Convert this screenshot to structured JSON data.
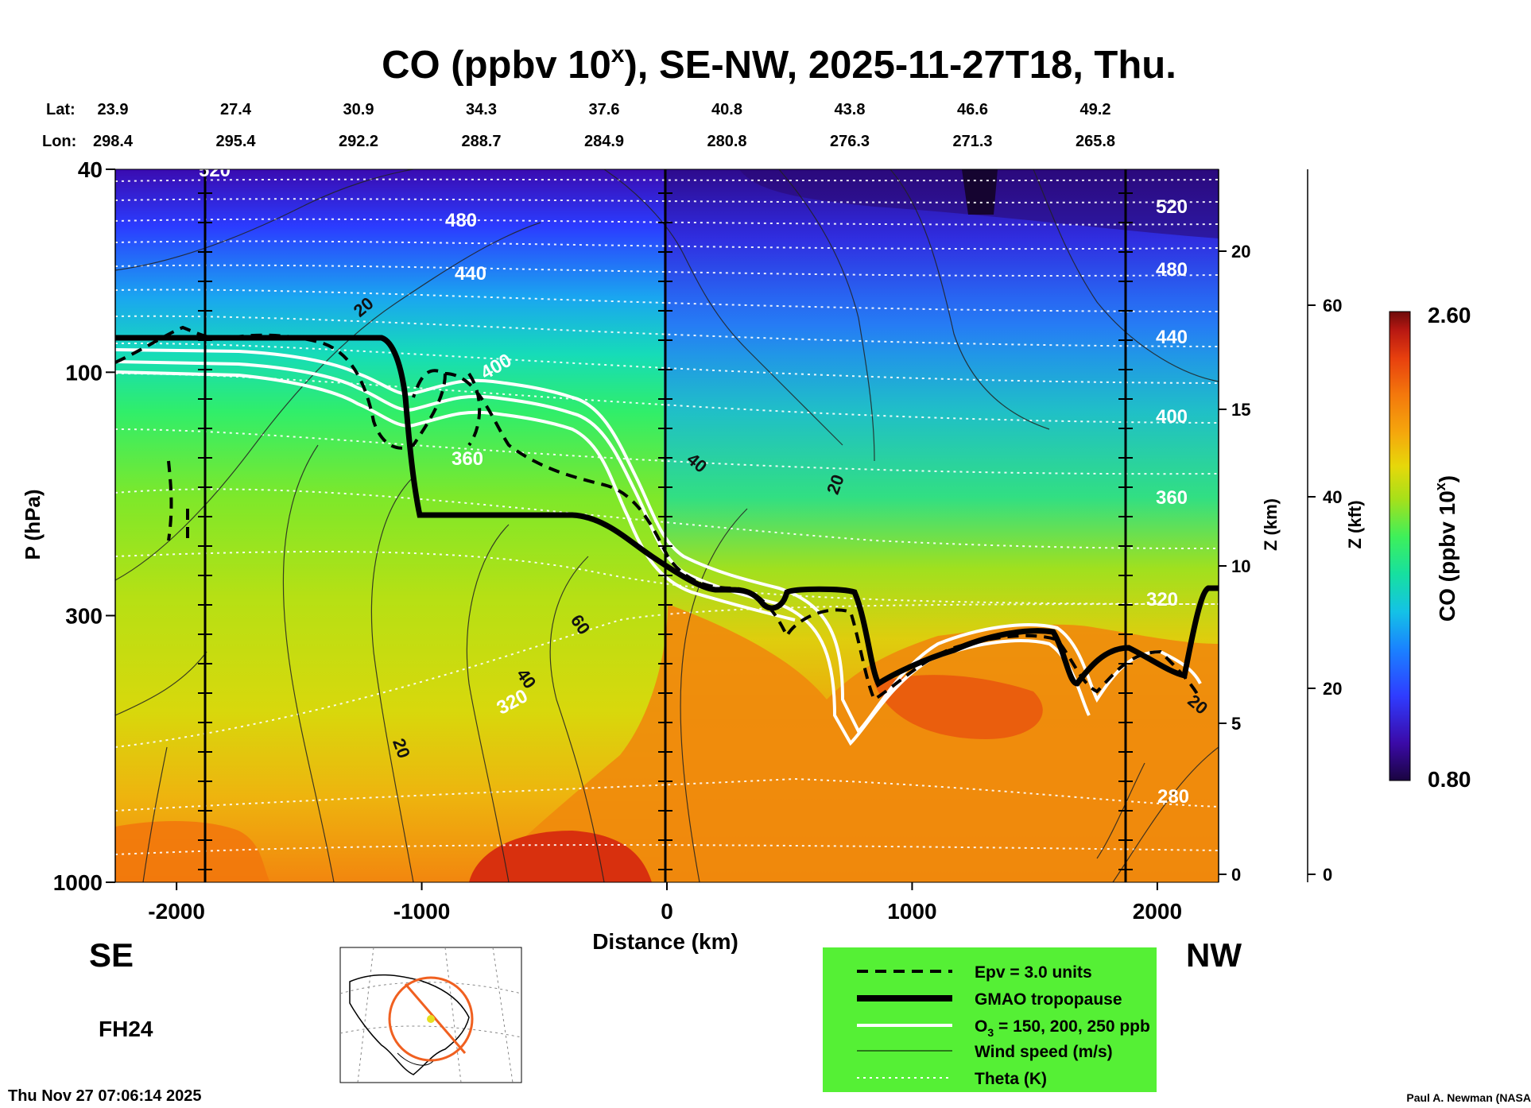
{
  "chart_data": {
    "type": "heatmap",
    "title_main": "CO (ppbv 10",
    "title_sup": "x",
    "title_rest": "), SE-NW, 2025-11-27T18, Thu.",
    "lat_label": "Lat:",
    "lon_label": "Lon:",
    "lat_values": [
      "23.9",
      "27.4",
      "30.9",
      "34.3",
      "37.6",
      "40.8",
      "43.8",
      "46.6",
      "49.2"
    ],
    "lon_values": [
      "298.4",
      "295.4",
      "292.2",
      "288.7",
      "284.9",
      "280.8",
      "276.3",
      "271.3",
      "265.8"
    ],
    "xlabel": "Distance (km)",
    "ylabel": "P (hPa)",
    "x_ticks": [
      "-2000",
      "-1000",
      "0",
      "1000",
      "2000"
    ],
    "x_tick_values": [
      -2000,
      -1000,
      0,
      1000,
      2000
    ],
    "xlim": [
      -2250,
      2250
    ],
    "y_ticks": [
      "40",
      "100",
      "300",
      "1000"
    ],
    "y_tick_values": [
      40,
      100,
      300,
      1000
    ],
    "ylim": [
      1000,
      40
    ],
    "y_scale": "log",
    "z_km_label": "Z (km)",
    "z_km_ticks": [
      "0",
      "5",
      "10",
      "15",
      "20"
    ],
    "z_kft_label": "Z (kft)",
    "z_kft_ticks": [
      "0",
      "20",
      "40",
      "60"
    ],
    "colorbar_label_main": "CO (ppbv 10",
    "colorbar_label_sup": "x",
    "colorbar_label_rest": ")",
    "colorbar_max": "2.60",
    "colorbar_min": "0.80",
    "colorbar_range": [
      0.8,
      2.6
    ],
    "colorbar_colors": [
      "#1a0440",
      "#3b0aa8",
      "#2f3cff",
      "#1a82ff",
      "#14c2e6",
      "#16e0a0",
      "#3ef05a",
      "#a6e01a",
      "#e6d80a",
      "#f5a80c",
      "#f47a0c",
      "#e8400e",
      "#b81812",
      "#6e0a0a"
    ],
    "theta_labels": [
      "520",
      "480",
      "440",
      "400",
      "360",
      "320",
      "280",
      "520",
      "480",
      "440",
      "400",
      "360",
      "320"
    ],
    "wind_labels": [
      "20",
      "40",
      "20",
      "60",
      "40",
      "20",
      "20"
    ],
    "left_direction": "SE",
    "right_direction": "NW",
    "forecast_hour": "FH24",
    "legend": [
      {
        "label": "Epv = 3.0 units",
        "style": "dashed"
      },
      {
        "label": "GMAO tropopause",
        "style": "thick"
      },
      {
        "label_main": "O",
        "label_sub": "3",
        "label_rest": " = 150, 200, 250 ppb",
        "style": "white"
      },
      {
        "label": "Wind speed (m/s)",
        "style": "thin"
      },
      {
        "label": "Theta (K)",
        "style": "dotted"
      }
    ],
    "timestamp": "Thu Nov 27 07:06:14 2025",
    "credit": "Paul A. Newman (NASA"
  }
}
